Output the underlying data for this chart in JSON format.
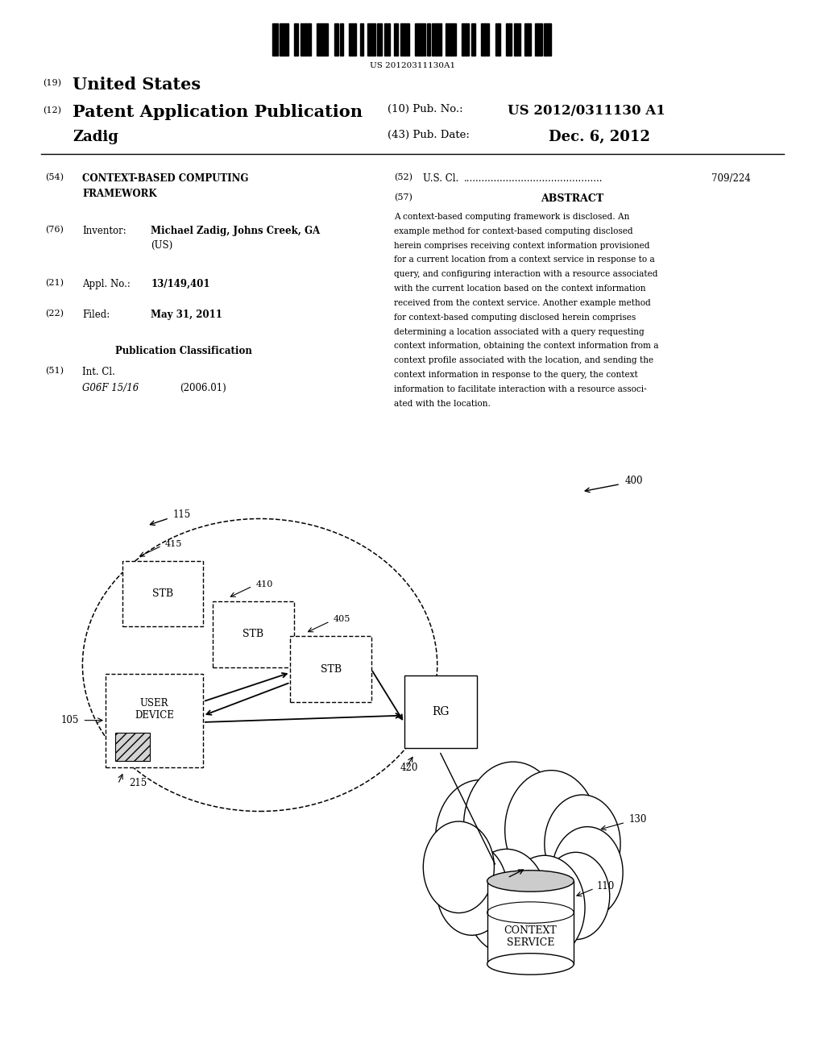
{
  "background_color": "#ffffff",
  "barcode_text": "US 20120311130A1",
  "title_19": "(19)",
  "title_19_text": "United States",
  "title_12": "(12)",
  "title_12_text": "Patent Application Publication",
  "title_10": "(10) Pub. No.:",
  "pub_no": "US 2012/0311130 A1",
  "author": "Zadig",
  "title_43": "(43) Pub. Date:",
  "pub_date": "Dec. 6, 2012",
  "field_54_label": "(54)",
  "field_76_label": "(76)",
  "field_76_name": "Inventor:",
  "field_76_bold": "Michael Zadig, Johns Creek, GA",
  "field_76_extra": "(US)",
  "field_21_label": "(21)",
  "field_21_name": "Appl. No.:",
  "field_21_value": "13/149,401",
  "field_22_label": "(22)",
  "field_22_name": "Filed:",
  "field_22_value": "May 31, 2011",
  "pub_class_label": "Publication Classification",
  "field_51_label": "(51)",
  "field_51_name": "Int. Cl.",
  "field_51_class": "G06F 15/16",
  "field_51_year": "(2006.01)",
  "field_52_label": "(52)",
  "field_52_number": "709/224",
  "field_57_label": "(57)",
  "field_57_title": "ABSTRACT",
  "abstract_text": "A context-based computing framework is disclosed. An example method for context-based computing disclosed herein comprises receiving context information provisioned for a current location from a context service in response to a query, and configuring interaction with a resource associated with the current location based on the context information received from the context service. Another example method for context-based computing disclosed herein comprises determining a location associated with a query requesting context information, obtaining the context information from a context profile associated with the location, and sending the context information in response to the query, the context information to facilitate interaction with a resource associated with the location.",
  "abstract_lines": [
    "A context-based computing framework is disclosed. An",
    "example method for context-based computing disclosed",
    "herein comprises receiving context information provisioned",
    "for a current location from a context service in response to a",
    "query, and configuring interaction with a resource associated",
    "with the current location based on the context information",
    "received from the context service. Another example method",
    "for context-based computing disclosed herein comprises",
    "determining a location associated with a query requesting",
    "context information, obtaining the context information from a",
    "context profile associated with the location, and sending the",
    "context information in response to the query, the context",
    "information to facilitate interaction with a resource associ-",
    "ated with the location."
  ],
  "cloud_circles": [
    [
      0.582,
      0.787,
      0.054
    ],
    [
      0.622,
      0.776,
      0.06
    ],
    [
      0.668,
      0.78,
      0.056
    ],
    [
      0.706,
      0.793,
      0.046
    ],
    [
      0.712,
      0.82,
      0.043
    ],
    [
      0.698,
      0.842,
      0.041
    ],
    [
      0.66,
      0.853,
      0.049
    ],
    [
      0.614,
      0.847,
      0.049
    ],
    [
      0.572,
      0.836,
      0.043
    ],
    [
      0.556,
      0.815,
      0.043
    ]
  ]
}
